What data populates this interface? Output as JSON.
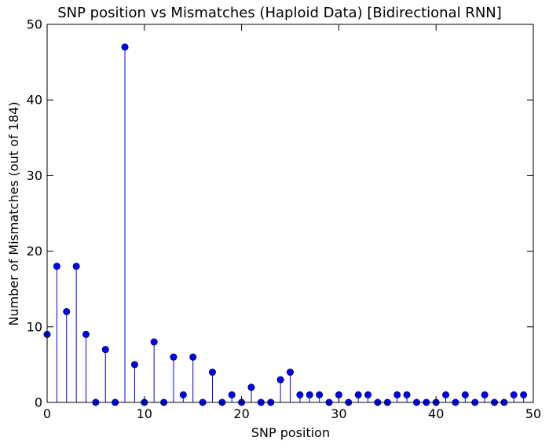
{
  "chart_data": {
    "type": "stem",
    "title": "SNP position vs Mismatches (Haploid Data) [Bidirectional RNN]",
    "xlabel": "SNP position",
    "ylabel": "Number of Mismatches (out of 184)",
    "xlim": [
      0,
      50
    ],
    "ylim": [
      0,
      50
    ],
    "xticks": [
      0,
      10,
      20,
      30,
      40,
      50
    ],
    "yticks": [
      0,
      10,
      20,
      30,
      40,
      50
    ],
    "grid": false,
    "color": "#0000ff",
    "x": [
      0,
      1,
      2,
      3,
      4,
      5,
      6,
      7,
      8,
      9,
      10,
      11,
      12,
      13,
      14,
      15,
      16,
      17,
      18,
      19,
      20,
      21,
      22,
      23,
      24,
      25,
      26,
      27,
      28,
      29,
      30,
      31,
      32,
      33,
      34,
      35,
      36,
      37,
      38,
      39,
      40,
      41,
      42,
      43,
      44,
      45,
      46,
      47,
      48,
      49
    ],
    "values": [
      9,
      18,
      12,
      18,
      9,
      0,
      7,
      0,
      47,
      5,
      0,
      8,
      0,
      6,
      1,
      6,
      0,
      4,
      0,
      1,
      0,
      2,
      0,
      0,
      3,
      4,
      1,
      1,
      1,
      0,
      1,
      0,
      1,
      1,
      0,
      0,
      1,
      1,
      0,
      0,
      0,
      1,
      0,
      1,
      0,
      1,
      0,
      0,
      1,
      1
    ]
  }
}
